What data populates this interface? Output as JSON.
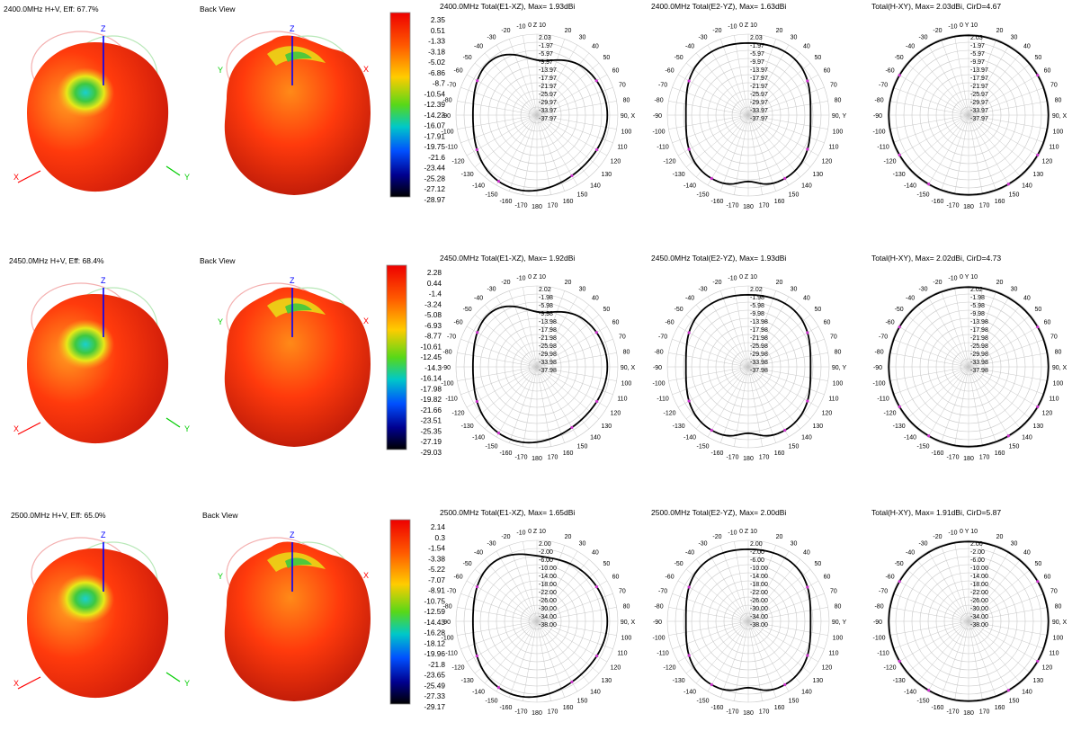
{
  "colors": {
    "pattern_stroke": "#000000",
    "grid": "#c8c8c8",
    "marker": "#cc33cc",
    "axis_x": "#ff0000",
    "axis_y": "#00cc00",
    "axis_z": "#0000ff"
  },
  "angle_labels": [
    "0",
    "10",
    "20",
    "30",
    "40",
    "50",
    "60",
    "70",
    "80",
    "90",
    "100",
    "110",
    "120",
    "130",
    "140",
    "150",
    "160",
    "170",
    "180",
    "-170",
    "-160",
    "-150",
    "-140",
    "-130",
    "-120",
    "-110",
    "-100",
    "-90",
    "-80",
    "-70",
    "-60",
    "-50",
    "-40",
    "-30",
    "-20",
    "-10"
  ],
  "rows": [
    {
      "front_label": "2400.0MHz H+V, Eff: 67.7%",
      "back_label": "Back View",
      "axis_labels": {
        "z": "Z",
        "x": "X",
        "y": "Y"
      },
      "colorbar": [
        "2.35",
        "0.51",
        "-1.33",
        "-3.18",
        "-5.02",
        "-6.86",
        "-8.7",
        "-10.54",
        "-12.39",
        "-14.23",
        "-16.07",
        "-17.91",
        "-19.75",
        "-21.6",
        "-23.44",
        "-25.28",
        "-27.12",
        "-28.97"
      ],
      "plots": [
        {
          "title": "2400.0MHz Total(E1-XZ), Max= 1.93dBi",
          "rings": [
            "2.03",
            "-1.97",
            "-5.97",
            "-9.97",
            "-13.97",
            "-17.97",
            "-21.97",
            "-25.97",
            "-29.97",
            "-33.97",
            "-37.97"
          ],
          "axis_name": "X",
          "zero_name": "Z",
          "chart_data": {
            "type": "polar",
            "max_dBi": 1.93,
            "rmax": 2.03,
            "rmin": -37.97,
            "angles_deg": [
              0,
              30,
              60,
              90,
              120,
              150,
              180,
              210,
              240,
              270,
              300,
              330
            ],
            "gain_dBi": [
              -9,
              -3,
              -1,
              -1,
              -2,
              -2,
              -2,
              -2,
              -2,
              -2,
              -1,
              -1
            ]
          }
        },
        {
          "title": "2400.0MHz Total(E2-YZ), Max= 1.63dBi",
          "rings": [
            "2.03",
            "-1.97",
            "-5.97",
            "-9.97",
            "-13.97",
            "-17.97",
            "-21.97",
            "-25.97",
            "-29.97",
            "-33.97",
            "-37.97"
          ],
          "axis_name": "Y",
          "zero_name": "Z",
          "chart_data": {
            "type": "polar",
            "max_dBi": 1.63,
            "rmax": 2.03,
            "rmin": -37.97,
            "angles_deg": [
              0,
              30,
              60,
              90,
              120,
              150,
              180,
              210,
              240,
              270,
              300,
              330
            ],
            "gain_dBi": [
              -3,
              -3,
              -1,
              0,
              -1,
              -2,
              -3,
              -2,
              -1,
              0,
              -1,
              -3
            ]
          }
        },
        {
          "title": "Total(H-XY), Max= 2.03dBi, CirD=4.67",
          "rings": [
            "2.03",
            "-1.97",
            "-5.97",
            "-9.97",
            "-13.97",
            "-17.97",
            "-21.97",
            "-25.97",
            "-29.97",
            "-33.97",
            "-37.97"
          ],
          "axis_name": "X",
          "zero_name": "Y",
          "chart_data": {
            "type": "polar",
            "max_dBi": 2.03,
            "rmax": 2.03,
            "rmin": -37.97,
            "angles_deg": [
              0,
              30,
              60,
              90,
              120,
              150,
              180,
              210,
              240,
              270,
              300,
              330
            ],
            "gain_dBi": [
              2,
              2,
              2,
              2,
              2,
              2,
              2,
              2,
              2,
              2,
              2,
              2
            ]
          }
        }
      ]
    },
    {
      "front_label": "2450.0MHz H+V, Eff: 68.4%",
      "back_label": "Back View",
      "axis_labels": {
        "z": "Z",
        "x": "X",
        "y": "Y"
      },
      "colorbar": [
        "2.28",
        "0.44",
        "-1.4",
        "-3.24",
        "-5.08",
        "-6.93",
        "-8.77",
        "-10.61",
        "-12.45",
        "-14.3",
        "-16.14",
        "-17.98",
        "-19.82",
        "-21.66",
        "-23.51",
        "-25.35",
        "-27.19",
        "-29.03"
      ],
      "plots": [
        {
          "title": "2450.0MHz Total(E1-XZ), Max= 1.92dBi",
          "rings": [
            "2.02",
            "-1.98",
            "-5.98",
            "-9.98",
            "-13.98",
            "-17.98",
            "-21.98",
            "-25.98",
            "-29.98",
            "-33.98",
            "-37.98"
          ],
          "axis_name": "X",
          "zero_name": "Z",
          "chart_data": {
            "type": "polar",
            "max_dBi": 1.92,
            "rmax": 2.02,
            "rmin": -37.98,
            "angles_deg": [
              0,
              30,
              60,
              90,
              120,
              150,
              180,
              210,
              240,
              270,
              300,
              330
            ],
            "gain_dBi": [
              -9,
              -4,
              -1,
              -1,
              -2,
              -2,
              -2,
              -2,
              -2,
              -2,
              -1,
              -1
            ]
          }
        },
        {
          "title": "2450.0MHz Total(E2-YZ), Max= 1.93dBi",
          "rings": [
            "2.02",
            "-1.98",
            "-5.98",
            "-9.98",
            "-13.98",
            "-17.98",
            "-21.98",
            "-25.98",
            "-29.98",
            "-33.98",
            "-37.98"
          ],
          "axis_name": "Y",
          "zero_name": "Z",
          "chart_data": {
            "type": "polar",
            "max_dBi": 1.93,
            "rmax": 2.02,
            "rmin": -37.98,
            "angles_deg": [
              0,
              30,
              60,
              90,
              120,
              150,
              180,
              210,
              240,
              270,
              300,
              330
            ],
            "gain_dBi": [
              -3,
              -3,
              -1,
              0,
              -1,
              -2,
              -3,
              -2,
              -1,
              0,
              -1,
              -3
            ]
          }
        },
        {
          "title": "Total(H-XY), Max= 2.02dBi, CirD=4.73",
          "rings": [
            "2.02",
            "-1.98",
            "-5.98",
            "-9.98",
            "-13.98",
            "-17.98",
            "-21.98",
            "-25.98",
            "-29.98",
            "-33.98",
            "-37.98"
          ],
          "axis_name": "X",
          "zero_name": "Y",
          "chart_data": {
            "type": "polar",
            "max_dBi": 2.02,
            "rmax": 2.02,
            "rmin": -37.98,
            "angles_deg": [
              0,
              30,
              60,
              90,
              120,
              150,
              180,
              210,
              240,
              270,
              300,
              330
            ],
            "gain_dBi": [
              2,
              2,
              2,
              2,
              2,
              2,
              2,
              2,
              2,
              2,
              2,
              2
            ]
          }
        }
      ]
    },
    {
      "front_label": "2500.0MHz H+V, Eff: 65.0%",
      "back_label": "Back View",
      "axis_labels": {
        "z": "Z",
        "x": "X",
        "y": "Y"
      },
      "colorbar": [
        "2.14",
        "0.3",
        "-1.54",
        "-3.38",
        "-5.22",
        "-7.07",
        "-8.91",
        "-10.75",
        "-12.59",
        "-14.43",
        "-16.28",
        "-18.12",
        "-19.96",
        "-21.8",
        "-23.65",
        "-25.49",
        "-27.33",
        "-29.17"
      ],
      "plots": [
        {
          "title": "2500.0MHz Total(E1-XZ), Max= 1.65dBi",
          "rings": [
            "2.00",
            "-2.00",
            "-6.00",
            "-10.00",
            "-14.00",
            "-18.00",
            "-22.00",
            "-26.00",
            "-30.00",
            "-34.00",
            "-38.00"
          ],
          "axis_name": "X",
          "zero_name": "Z",
          "chart_data": {
            "type": "polar",
            "max_dBi": 1.65,
            "rmax": 2.0,
            "rmin": -38.0,
            "angles_deg": [
              0,
              30,
              60,
              90,
              120,
              150,
              180,
              210,
              240,
              270,
              300,
              330
            ],
            "gain_dBi": [
              -4,
              -2,
              -1,
              -1,
              -2,
              -2,
              -2,
              -2,
              -2,
              -2,
              -1,
              -2
            ]
          }
        },
        {
          "title": "2500.0MHz Total(E2-YZ), Max= 2.00dBi",
          "rings": [
            "2.00",
            "-2.00",
            "-6.00",
            "-10.00",
            "-14.00",
            "-18.00",
            "-22.00",
            "-26.00",
            "-30.00",
            "-34.00",
            "-38.00"
          ],
          "axis_name": "Y",
          "zero_name": "Z",
          "chart_data": {
            "type": "polar",
            "max_dBi": 2.0,
            "rmax": 2.0,
            "rmin": -38.0,
            "angles_deg": [
              0,
              30,
              60,
              90,
              120,
              150,
              180,
              210,
              240,
              270,
              300,
              330
            ],
            "gain_dBi": [
              -3,
              -3,
              -1,
              0,
              -1,
              -2,
              -3,
              -2,
              -1,
              0,
              -1,
              -3
            ]
          }
        },
        {
          "title": "Total(H-XY), Max= 1.91dBi, CirD=5.87",
          "rings": [
            "2.00",
            "-2.00",
            "-6.00",
            "-10.00",
            "-14.00",
            "-18.00",
            "-22.00",
            "-26.00",
            "-30.00",
            "-34.00",
            "-38.00"
          ],
          "axis_name": "X",
          "zero_name": "Y",
          "chart_data": {
            "type": "polar",
            "max_dBi": 1.91,
            "rmax": 2.0,
            "rmin": -38.0,
            "angles_deg": [
              0,
              30,
              60,
              90,
              120,
              150,
              180,
              210,
              240,
              270,
              300,
              330
            ],
            "gain_dBi": [
              2,
              2,
              2,
              2,
              2,
              2,
              2,
              2,
              2,
              2,
              2,
              2
            ]
          }
        }
      ]
    }
  ]
}
